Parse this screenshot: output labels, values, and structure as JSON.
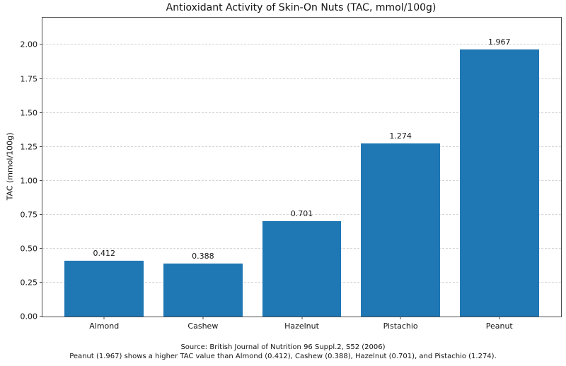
{
  "footer": {
    "source": "Source: British Journal of Nutrition 96 Suppl.2, S52 (2006)",
    "caption": "Peanut (1.967) shows a higher TAC value than Almond (0.412), Cashew (0.388), Hazelnut (0.701), and Pistachio (1.274)."
  },
  "chart_data": {
    "type": "bar",
    "title": "Antioxidant Activity of Skin-On Nuts (TAC, mmol/100g)",
    "categories": [
      "Almond",
      "Cashew",
      "Hazelnut",
      "Pistachio",
      "Peanut"
    ],
    "values": [
      0.412,
      0.388,
      0.701,
      1.274,
      1.967
    ],
    "value_labels": [
      "0.412",
      "0.388",
      "0.701",
      "1.274",
      "1.967"
    ],
    "xlabel": "",
    "ylabel": "TAC (mmol/100g)",
    "ylim": [
      0,
      2.2
    ],
    "yticks": [
      0.0,
      0.25,
      0.5,
      0.75,
      1.0,
      1.25,
      1.5,
      1.75,
      2.0
    ],
    "ytick_labels": [
      "0.00",
      "0.25",
      "0.50",
      "0.75",
      "1.00",
      "1.25",
      "1.50",
      "1.75",
      "2.00"
    ],
    "grid": "horizontal-dashed",
    "legend": "none",
    "bar_color": "#1f77b4",
    "grid_color": "#d5d5d5",
    "spine_color": "#4a4a4a",
    "text_color": "#141414",
    "background": "#ffffff"
  }
}
